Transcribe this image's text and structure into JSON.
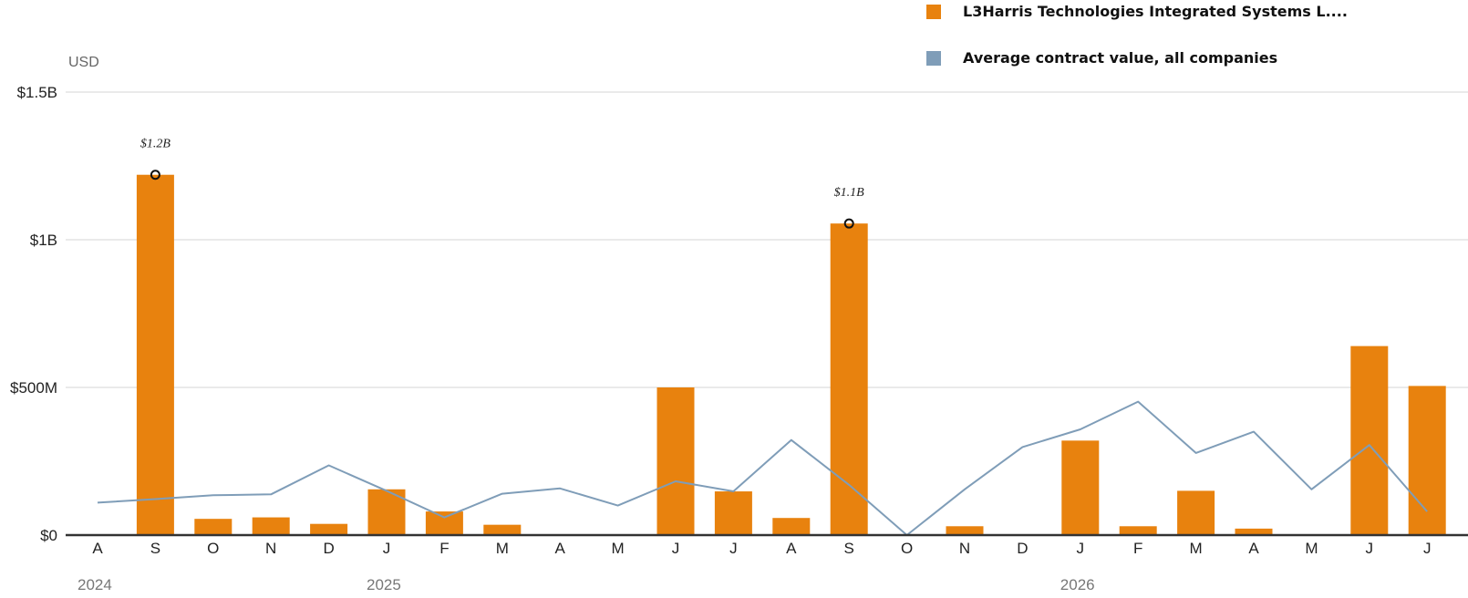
{
  "legend": {
    "items": [
      {
        "label": "L3Harris Technologies Integrated Systems L....",
        "color": "#e8820e"
      },
      {
        "label": "Average contract value, all companies",
        "color": "#7f9db8"
      }
    ]
  },
  "chart_data": {
    "type": "bar",
    "ylabel": "USD",
    "ylim": [
      0,
      1500000000
    ],
    "yticks": [
      {
        "value": 0,
        "label": "$0"
      },
      {
        "value": 500000000,
        "label": "$500M"
      },
      {
        "value": 1000000000,
        "label": "$1B"
      },
      {
        "value": 1500000000,
        "label": "$1.5B"
      }
    ],
    "categories": [
      "A",
      "S",
      "O",
      "N",
      "D",
      "J",
      "F",
      "M",
      "A",
      "M",
      "J",
      "J",
      "A",
      "S",
      "O",
      "N",
      "D",
      "J",
      "F",
      "M",
      "A",
      "M",
      "J",
      "J"
    ],
    "year_labels": [
      {
        "index": 0,
        "label": "2024"
      },
      {
        "index": 5,
        "label": "2025"
      },
      {
        "index": 17,
        "label": "2026"
      }
    ],
    "series": [
      {
        "name": "L3Harris Technologies Integrated Systems L....",
        "type": "bar",
        "color": "#e8820e",
        "values": [
          0,
          1220000000,
          55000000,
          60000000,
          38000000,
          155000000,
          80000000,
          35000000,
          0,
          0,
          500000000,
          148000000,
          58000000,
          1055000000,
          0,
          30000000,
          0,
          320000000,
          30000000,
          150000000,
          22000000,
          0,
          640000000,
          505000000
        ]
      },
      {
        "name": "Average contract value, all companies",
        "type": "line",
        "color": "#7f9db8",
        "values": [
          110000000,
          122000000,
          135000000,
          138000000,
          236000000,
          150000000,
          60000000,
          140000000,
          158000000,
          100000000,
          182000000,
          148000000,
          322000000,
          170000000,
          0,
          155000000,
          298000000,
          358000000,
          452000000,
          278000000,
          350000000,
          155000000,
          305000000,
          80000000
        ]
      }
    ],
    "annotations": [
      {
        "index": 1,
        "label": "$1.2B",
        "value": 1220000000
      },
      {
        "index": 13,
        "label": "$1.1B",
        "value": 1055000000
      }
    ],
    "grid": true
  }
}
